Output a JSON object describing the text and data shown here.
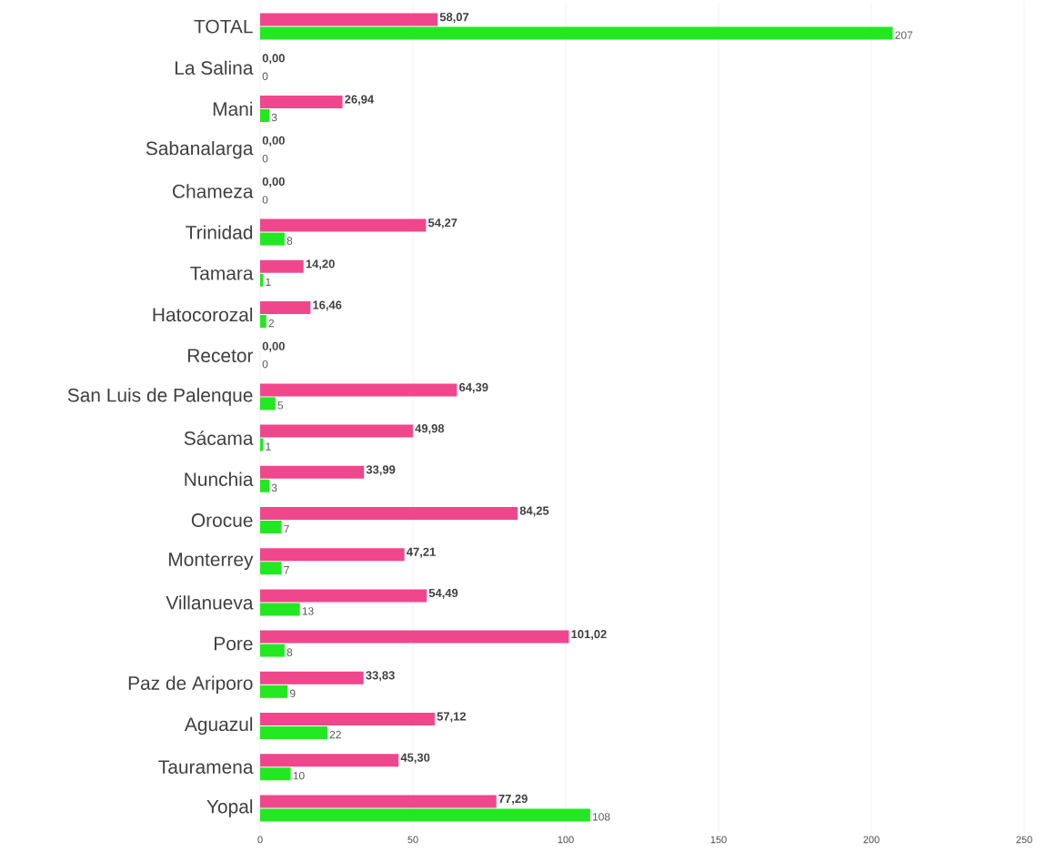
{
  "chart_data": {
    "type": "bar",
    "orientation": "horizontal",
    "categories": [
      "TOTAL",
      "La Salina",
      "Mani",
      "Sabanalarga",
      "Chameza",
      "Trinidad",
      "Tamara",
      "Hatocorozal",
      "Recetor",
      "San Luis de Palenque",
      "Sácama",
      "Nunchia",
      "Orocue",
      "Monterrey",
      "Villanueva",
      "Pore",
      "Paz de Ariporo",
      "Aguazul",
      "Tauramena",
      "Yopal"
    ],
    "series": [
      {
        "color": "#f0468c",
        "values": [
          58.07,
          0,
          26.94,
          0,
          0,
          54.27,
          14.2,
          16.46,
          0,
          64.39,
          49.98,
          33.99,
          84.25,
          47.21,
          54.49,
          101.02,
          33.83,
          57.12,
          45.3,
          77.29
        ],
        "value_labels": [
          "58,07",
          "0,00",
          "26,94",
          "0,00",
          "0,00",
          "54,27",
          "14,20",
          "16,46",
          "0,00",
          "64,39",
          "49,98",
          "33,99",
          "84,25",
          "47,21",
          "54,49",
          "101,02",
          "33,83",
          "57,12",
          "45,30",
          "77,29"
        ]
      },
      {
        "color": "#22e822",
        "values": [
          207,
          0,
          3,
          0,
          0,
          8,
          1,
          2,
          0,
          5,
          1,
          3,
          7,
          7,
          13,
          8,
          9,
          22,
          10,
          108
        ],
        "value_labels": [
          "207",
          "0",
          "3",
          "0",
          "0",
          "8",
          "1",
          "2",
          "0",
          "5",
          "1",
          "3",
          "7",
          "7",
          "13",
          "8",
          "9",
          "22",
          "10",
          "108"
        ]
      }
    ],
    "xlim": [
      0,
      250
    ],
    "xticks": [
      0,
      50,
      100,
      150,
      200,
      250
    ],
    "grid": "x"
  }
}
